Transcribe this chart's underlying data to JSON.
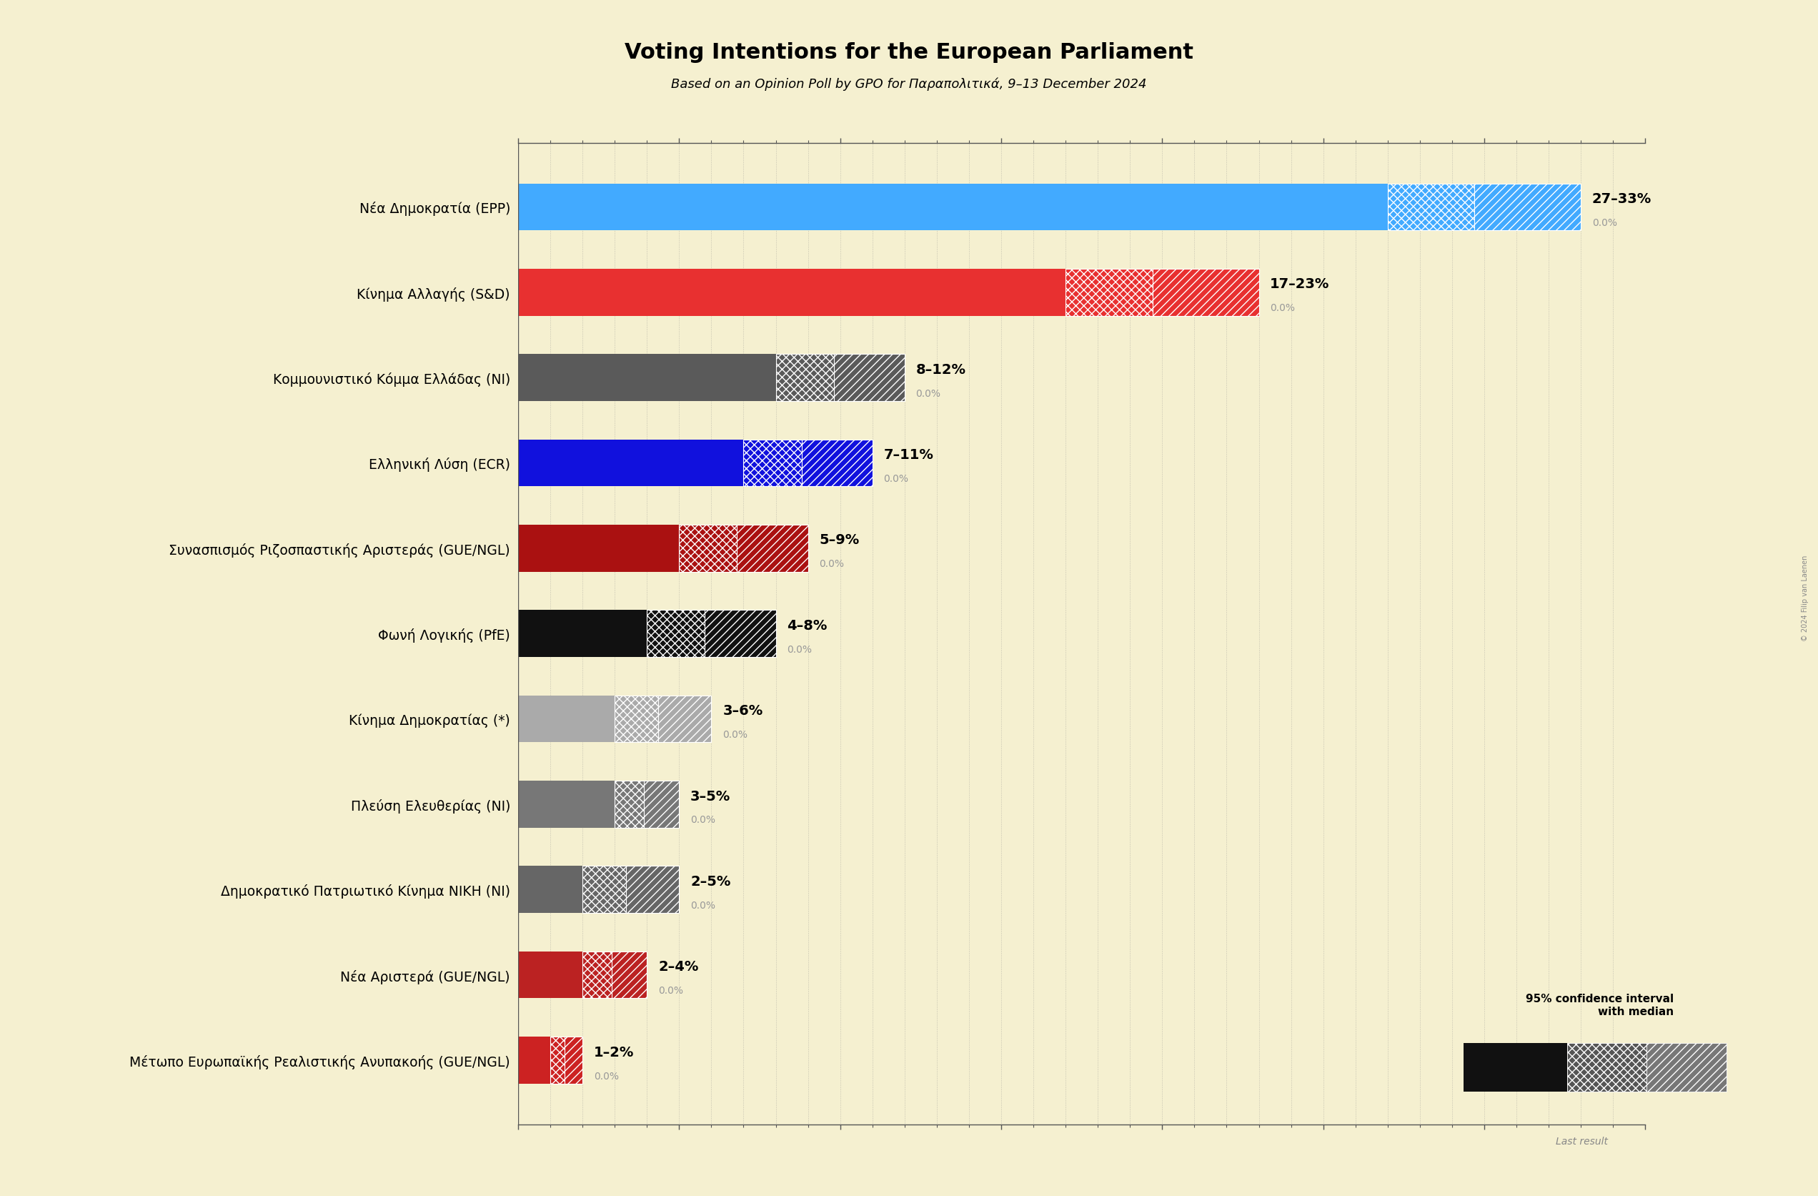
{
  "title": "Voting Intentions for the European Parliament",
  "subtitle": "Based on an Opinion Poll by GPO for Παραπολιτικά, 9–13 December 2024",
  "background_color": "#f5f0d0",
  "parties": [
    "Νέα Δημοκρατία (EPP)",
    "Κίνημα Αλλαγής (S&D)",
    "Κομμουνιστικό Κόμμα Ελλάδας (NI)",
    "Ελληνική Λύση (ECR)",
    "Συνασπισμός Ριζοσπαστικής Αριστεράς (GUE/NGL)",
    "Φωνή Λογικής (PfE)",
    "Κίνημα Δημοκρατίας (*)",
    "Πλεύση Ελευθερίας (NI)",
    "Δημοκρατικό Πατριωτικό Κίνημα ΝΙΚΗ (NI)",
    "Νέα Αριστερά (GUE/NGL)",
    "Μέτωπο Ευρωπαϊκής Ρεαλιστικής Ανυπακοής (GUE/NGL)"
  ],
  "low": [
    27,
    17,
    8,
    7,
    5,
    4,
    3,
    3,
    2,
    2,
    1
  ],
  "high": [
    33,
    23,
    12,
    11,
    9,
    8,
    6,
    5,
    5,
    4,
    2
  ],
  "median": [
    30,
    20,
    10,
    9,
    7,
    6,
    4.5,
    4,
    3.5,
    3,
    1.5
  ],
  "last_result": [
    0.0,
    0.0,
    0.0,
    0.0,
    0.0,
    0.0,
    0.0,
    0.0,
    0.0,
    0.0,
    0.0
  ],
  "solid_colors": [
    "#42aaff",
    "#e83030",
    "#5a5a5a",
    "#1111dd",
    "#aa1111",
    "#111111",
    "#aaaaaa",
    "#777777",
    "#666666",
    "#bb2222",
    "#cc2222"
  ],
  "label_ranges": [
    "27–33%",
    "17–23%",
    "8–12%",
    "7–11%",
    "5–9%",
    "4–8%",
    "3–6%",
    "3–5%",
    "2–5%",
    "2–4%",
    "1–2%"
  ],
  "xlim": [
    0,
    35
  ],
  "copyright_text": "© 2024 Filip van Laenen"
}
